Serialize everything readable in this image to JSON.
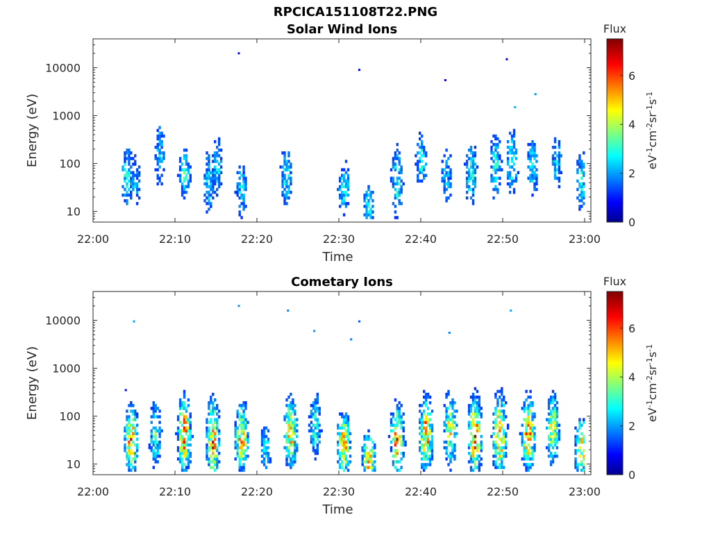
{
  "figure": {
    "title": "RPCICA151108T22.PNG"
  },
  "colors": {
    "axis": "#262626",
    "colormap": "jet"
  },
  "chart_data": [
    {
      "type": "heatmap",
      "title": "Solar Wind Ions",
      "xlabel": "Time",
      "ylabel": "Energy (eV)",
      "xlim": [
        "22:00",
        "23:00"
      ],
      "x_ticks": [
        "22:00",
        "22:10",
        "22:20",
        "22:30",
        "22:40",
        "22:50",
        "23:00"
      ],
      "y_scale": "log",
      "ylim": [
        6,
        40000
      ],
      "y_ticks": [
        10,
        100,
        1000,
        10000
      ],
      "y_tick_labels": [
        "10",
        "100",
        "1000",
        "10000"
      ],
      "colorbar": {
        "title": "Flux",
        "label": "eV^-1 cm^-2 sr^-1 s^-1",
        "range": [
          0,
          7.5
        ],
        "ticks": [
          "0",
          "2",
          "4",
          "6"
        ]
      },
      "bursts": [
        {
          "time": 4.0,
          "e_center": 50,
          "e_spread": 2.0,
          "peak": 3.2
        },
        {
          "time": 5.0,
          "e_center": 40,
          "e_spread": 1.8,
          "peak": 2.5
        },
        {
          "time": 8.0,
          "e_center": 150,
          "e_spread": 2.2,
          "peak": 2.8
        },
        {
          "time": 11.0,
          "e_center": 60,
          "e_spread": 1.5,
          "peak": 3.4
        },
        {
          "time": 14.0,
          "e_center": 40,
          "e_spread": 2.2,
          "peak": 2.8
        },
        {
          "time": 15.0,
          "e_center": 80,
          "e_spread": 1.8,
          "peak": 3.0
        },
        {
          "time": 18.0,
          "e_center": 30,
          "e_spread": 1.8,
          "peak": 3.0
        },
        {
          "time": 23.5,
          "e_center": 50,
          "e_spread": 1.8,
          "peak": 3.2
        },
        {
          "time": 30.5,
          "e_center": 30,
          "e_spread": 1.6,
          "peak": 3.4
        },
        {
          "time": 33.5,
          "e_center": 12,
          "e_spread": 1.5,
          "peak": 3.0
        },
        {
          "time": 37.0,
          "e_center": 40,
          "e_spread": 2.2,
          "peak": 3.4
        },
        {
          "time": 40.0,
          "e_center": 100,
          "e_spread": 1.8,
          "peak": 3.2
        },
        {
          "time": 43.0,
          "e_center": 50,
          "e_spread": 1.8,
          "peak": 2.8
        },
        {
          "time": 46.0,
          "e_center": 60,
          "e_spread": 2.0,
          "peak": 3.4
        },
        {
          "time": 49.0,
          "e_center": 80,
          "e_spread": 2.2,
          "peak": 3.2
        },
        {
          "time": 51.0,
          "e_center": 100,
          "e_spread": 2.0,
          "peak": 3.4
        },
        {
          "time": 53.5,
          "e_center": 80,
          "e_spread": 2.0,
          "peak": 3.0
        },
        {
          "time": 56.5,
          "e_center": 100,
          "e_spread": 1.8,
          "peak": 2.8
        },
        {
          "time": 59.5,
          "e_center": 40,
          "e_spread": 2.0,
          "peak": 3.0
        }
      ],
      "sparse_points": [
        {
          "time": 17.8,
          "energy": 20000,
          "value": 1.0
        },
        {
          "time": 32.5,
          "energy": 9000,
          "value": 0.8
        },
        {
          "time": 43.0,
          "energy": 5500,
          "value": 0.6
        },
        {
          "time": 50.5,
          "energy": 15000,
          "value": 0.9
        },
        {
          "time": 54.0,
          "energy": 2800,
          "value": 2.0
        },
        {
          "time": 51.5,
          "energy": 1500,
          "value": 2.2
        }
      ]
    },
    {
      "type": "heatmap",
      "title": "Cometary Ions",
      "xlabel": "Time",
      "ylabel": "Energy (eV)",
      "xlim": [
        "22:00",
        "23:00"
      ],
      "x_ticks": [
        "22:00",
        "22:10",
        "22:20",
        "22:30",
        "22:40",
        "22:50",
        "23:00"
      ],
      "y_scale": "log",
      "ylim": [
        6,
        40000
      ],
      "y_ticks": [
        10,
        100,
        1000,
        10000
      ],
      "y_tick_labels": [
        "10",
        "100",
        "1000",
        "10000"
      ],
      "colorbar": {
        "title": "Flux",
        "label": "eV^-1 cm^-2 sr^-1 s^-1",
        "range": [
          0,
          7.5
        ],
        "ticks": [
          "0",
          "2",
          "4",
          "6"
        ]
      },
      "bursts": [
        {
          "time": 4.5,
          "e_center": 30,
          "e_spread": 1.8,
          "peak": 6.2
        },
        {
          "time": 7.5,
          "e_center": 40,
          "e_spread": 2.0,
          "peak": 3.6
        },
        {
          "time": 11.0,
          "e_center": 40,
          "e_spread": 2.0,
          "peak": 6.5
        },
        {
          "time": 14.5,
          "e_center": 30,
          "e_spread": 2.2,
          "peak": 6.3
        },
        {
          "time": 18.0,
          "e_center": 35,
          "e_spread": 1.8,
          "peak": 6.0
        },
        {
          "time": 21.0,
          "e_center": 20,
          "e_spread": 1.5,
          "peak": 3.0
        },
        {
          "time": 24.0,
          "e_center": 40,
          "e_spread": 2.0,
          "peak": 5.5
        },
        {
          "time": 27.0,
          "e_center": 60,
          "e_spread": 2.0,
          "peak": 3.6
        },
        {
          "time": 30.5,
          "e_center": 25,
          "e_spread": 1.8,
          "peak": 6.0
        },
        {
          "time": 33.5,
          "e_center": 12,
          "e_spread": 1.5,
          "peak": 5.8
        },
        {
          "time": 37.0,
          "e_center": 30,
          "e_spread": 1.9,
          "peak": 6.5
        },
        {
          "time": 40.5,
          "e_center": 40,
          "e_spread": 2.0,
          "peak": 6.3
        },
        {
          "time": 43.5,
          "e_center": 50,
          "e_spread": 2.0,
          "peak": 5.2
        },
        {
          "time": 46.5,
          "e_center": 35,
          "e_spread": 2.2,
          "peak": 6.6
        },
        {
          "time": 49.5,
          "e_center": 40,
          "e_spread": 2.2,
          "peak": 6.5
        },
        {
          "time": 53.0,
          "e_center": 40,
          "e_spread": 2.0,
          "peak": 6.2
        },
        {
          "time": 56.0,
          "e_center": 50,
          "e_spread": 2.0,
          "peak": 5.0
        },
        {
          "time": 59.5,
          "e_center": 20,
          "e_spread": 1.8,
          "peak": 5.5
        }
      ],
      "sparse_points": [
        {
          "time": 17.8,
          "energy": 20000,
          "value": 2.0
        },
        {
          "time": 23.8,
          "energy": 16000,
          "value": 1.9
        },
        {
          "time": 5.0,
          "energy": 9500,
          "value": 2.1
        },
        {
          "time": 27.0,
          "energy": 6000,
          "value": 2.0
        },
        {
          "time": 31.5,
          "energy": 4000,
          "value": 1.8
        },
        {
          "time": 32.5,
          "energy": 9500,
          "value": 1.6
        },
        {
          "time": 43.5,
          "energy": 5500,
          "value": 1.9
        },
        {
          "time": 51.0,
          "energy": 16000,
          "value": 2.2
        },
        {
          "time": 4.0,
          "energy": 350,
          "value": 0.6
        }
      ]
    }
  ]
}
